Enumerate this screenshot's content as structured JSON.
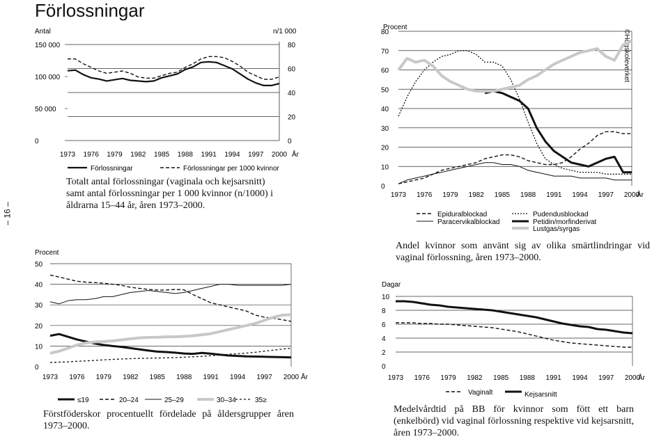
{
  "page_title": "Förlossningar",
  "page_number": "– 16 –",
  "credit": "©Högskoleverket",
  "chart_data": [
    {
      "id": "c1",
      "type": "line",
      "left_axis_label": "Antal",
      "right_axis_label": "n/1 000",
      "x_unit": "År",
      "x_ticks": [
        "1973",
        "1976",
        "1979",
        "1982",
        "1985",
        "1988",
        "1991",
        "1994",
        "1997",
        "2000"
      ],
      "left_ticks": [
        "0",
        "50 000",
        "100 000",
        "150 000"
      ],
      "right_ticks": [
        "0",
        "20",
        "40",
        "60",
        "80"
      ],
      "left_ylim": [
        0,
        150000
      ],
      "right_ylim": [
        0,
        80
      ],
      "x": [
        1973,
        1974,
        1975,
        1976,
        1977,
        1978,
        1979,
        1980,
        1981,
        1982,
        1983,
        1984,
        1985,
        1986,
        1987,
        1988,
        1989,
        1990,
        1991,
        1992,
        1993,
        1994,
        1995,
        1996,
        1997,
        1998,
        1999,
        2000
      ],
      "series": [
        {
          "name": "Förlossningar",
          "style": "solid",
          "axis": "left",
          "values": [
            109000,
            110000,
            103000,
            98000,
            96000,
            93000,
            95000,
            97000,
            94000,
            93000,
            92000,
            93000,
            98000,
            101000,
            104000,
            111000,
            115000,
            122000,
            123000,
            122000,
            117000,
            112000,
            104000,
            96000,
            90000,
            86000,
            86000,
            89000
          ]
        },
        {
          "name": "Förlossningar per 1000 kvinnor",
          "style": "dashed",
          "axis": "right",
          "values": [
            68,
            68,
            64,
            61,
            58,
            56,
            57,
            58,
            56,
            53,
            52,
            52,
            54,
            56,
            57,
            61,
            64,
            68,
            70,
            70,
            69,
            66,
            62,
            57,
            54,
            51,
            51,
            53
          ]
        }
      ],
      "caption": "Totalt antal förlossningar (vaginala och kejsarsnitt) samt antal förlossningar per 1 000 kvinnor (n/1000) i åldrarna 15–44 år, åren 1973–2000."
    },
    {
      "id": "c2",
      "type": "line",
      "y_axis_label": "Procent",
      "x_unit": "År",
      "x_ticks": [
        "1973",
        "1976",
        "1979",
        "1982",
        "1985",
        "1988",
        "1991",
        "1994",
        "1997",
        "2000"
      ],
      "y_ticks": [
        "0",
        "10",
        "20",
        "30",
        "40",
        "50",
        "60",
        "70",
        "80"
      ],
      "ylim": [
        0,
        80
      ],
      "x": [
        1973,
        1974,
        1975,
        1976,
        1977,
        1978,
        1979,
        1980,
        1981,
        1982,
        1983,
        1984,
        1985,
        1986,
        1987,
        1988,
        1989,
        1990,
        1991,
        1992,
        1993,
        1994,
        1995,
        1996,
        1997,
        1998,
        1999,
        2000
      ],
      "series": [
        {
          "name": "Epiduralblockad",
          "style": "dashed",
          "values": [
            1,
            2,
            3,
            4,
            6,
            8,
            9,
            10,
            11,
            12,
            14,
            15,
            16,
            16,
            15,
            13,
            12,
            11,
            11,
            12,
            15,
            19,
            22,
            26,
            28,
            28,
            27,
            27
          ]
        },
        {
          "name": "Paracervikalblockad",
          "style": "thin",
          "values": [
            1,
            3,
            4,
            5,
            6,
            7,
            8,
            9,
            10,
            11,
            12,
            12,
            11,
            11,
            10,
            8,
            7,
            6,
            5,
            5,
            5,
            4,
            4,
            4,
            4,
            3,
            3,
            3
          ]
        },
        {
          "name": "Pudendusblockad",
          "style": "dotted",
          "values": [
            36,
            46,
            54,
            60,
            64,
            67,
            68,
            70,
            70,
            68,
            64,
            64,
            62,
            55,
            45,
            33,
            22,
            14,
            11,
            9,
            8,
            7,
            7,
            7,
            6,
            6,
            6,
            6
          ]
        },
        {
          "name": "Petidin/morfinderivat",
          "style": "thick",
          "values": [
            null,
            null,
            null,
            null,
            null,
            null,
            null,
            null,
            null,
            null,
            48,
            49,
            48,
            46,
            44,
            40,
            30,
            23,
            18,
            15,
            12,
            11,
            10,
            12,
            14,
            15,
            7,
            7
          ]
        },
        {
          "name": "Lustgas/syrgas",
          "style": "grey",
          "values": [
            60,
            66,
            64,
            65,
            62,
            57,
            54,
            52,
            50,
            49,
            49,
            49,
            50,
            51,
            52,
            55,
            57,
            60,
            63,
            65,
            67,
            69,
            70,
            71,
            67,
            65,
            73,
            75
          ]
        }
      ],
      "caption": "Andel kvinnor som använt sig av olika smärtlindringar vid vaginal förlossning, åren 1973–2000."
    },
    {
      "id": "c3",
      "type": "line",
      "y_axis_label": "Procent",
      "x_unit": "År",
      "x_ticks": [
        "1973",
        "1976",
        "1979",
        "1982",
        "1985",
        "1988",
        "1991",
        "1994",
        "1997",
        "2000"
      ],
      "y_ticks": [
        "0",
        "10",
        "20",
        "30",
        "40",
        "50"
      ],
      "ylim": [
        0,
        50
      ],
      "x": [
        1973,
        1974,
        1975,
        1976,
        1977,
        1978,
        1979,
        1980,
        1981,
        1982,
        1983,
        1984,
        1985,
        1986,
        1987,
        1988,
        1989,
        1990,
        1991,
        1992,
        1993,
        1994,
        1995,
        1996,
        1997,
        1998,
        1999,
        2000
      ],
      "series": [
        {
          "name": "≤19",
          "style": "thick",
          "values": [
            15,
            15.8,
            14.5,
            13.2,
            12.2,
            11.2,
            10.5,
            10,
            9.6,
            9,
            8.4,
            7.8,
            7.3,
            7.1,
            6.8,
            6.4,
            6.2,
            6.7,
            6.3,
            5.8,
            5.4,
            5.2,
            5,
            4.9,
            4.8,
            4.7,
            4.6,
            4.5
          ]
        },
        {
          "name": "20–24",
          "style": "dashed",
          "values": [
            44.5,
            43.5,
            42.5,
            41.5,
            41,
            40.8,
            40.5,
            40,
            39.5,
            38.5,
            38,
            37.5,
            37.2,
            37.2,
            37.5,
            37.3,
            35,
            33,
            31,
            30,
            29,
            28,
            27,
            25,
            24,
            23.5,
            22.8,
            22
          ]
        },
        {
          "name": "25–29",
          "style": "thin",
          "values": [
            31.5,
            30.5,
            32,
            32.5,
            32.5,
            33,
            34,
            34,
            35,
            36,
            36.5,
            37,
            36.5,
            36,
            35.5,
            36,
            37,
            38,
            39,
            40,
            40,
            39.5,
            39.5,
            39.5,
            39.5,
            39.5,
            39.5,
            40
          ]
        },
        {
          "name": "30–34",
          "style": "grey",
          "values": [
            6.5,
            7.5,
            9,
            10.5,
            11.5,
            12,
            12.2,
            12.5,
            13,
            13.5,
            14,
            14.2,
            14.3,
            14.5,
            14.5,
            14.7,
            15,
            15.5,
            16,
            17,
            18,
            19,
            20,
            21,
            22.5,
            24,
            25,
            25.2
          ]
        },
        {
          "name": "35≥",
          "style": "dashed-small",
          "values": [
            2,
            2.2,
            2.3,
            2.6,
            2.8,
            3,
            3.3,
            3.5,
            3.7,
            3.9,
            4,
            4.1,
            4.2,
            4.3,
            4.4,
            4.6,
            4.8,
            5,
            5.3,
            5.6,
            6,
            6.3,
            6.6,
            7,
            7.5,
            8,
            8.5,
            9
          ]
        }
      ],
      "legend_labels": [
        "≤19",
        "20–24",
        "25–29",
        "30–34",
        "35≥"
      ],
      "caption": "Förstföderskor procentuellt fördelade på åldersgrupper åren 1973–2000."
    },
    {
      "id": "c4",
      "type": "line",
      "y_axis_label": "Dagar",
      "x_unit": "År",
      "x_ticks": [
        "1973",
        "1976",
        "1979",
        "1982",
        "1985",
        "1988",
        "1991",
        "1994",
        "1997",
        "2000"
      ],
      "y_ticks": [
        "0",
        "2",
        "4",
        "6",
        "8",
        "10"
      ],
      "ylim": [
        0,
        10
      ],
      "x": [
        1973,
        1974,
        1975,
        1976,
        1977,
        1978,
        1979,
        1980,
        1981,
        1982,
        1983,
        1984,
        1985,
        1986,
        1987,
        1988,
        1989,
        1990,
        1991,
        1992,
        1993,
        1994,
        1995,
        1996,
        1997,
        1998,
        1999,
        2000
      ],
      "series": [
        {
          "name": "Vaginalt",
          "style": "dashed",
          "values": [
            6.2,
            6.2,
            6.2,
            6.1,
            6.1,
            6,
            6,
            5.9,
            5.8,
            5.7,
            5.6,
            5.5,
            5.3,
            5.1,
            4.9,
            4.6,
            4.3,
            4,
            3.7,
            3.5,
            3.3,
            3.2,
            3.1,
            3,
            2.9,
            2.8,
            2.7,
            2.7
          ]
        },
        {
          "name": "Kejsarsnitt",
          "style": "thick",
          "values": [
            9.3,
            9.3,
            9.2,
            9,
            8.8,
            8.7,
            8.5,
            8.4,
            8.3,
            8.2,
            8.1,
            8,
            7.8,
            7.6,
            7.4,
            7.2,
            7,
            6.7,
            6.4,
            6.1,
            5.9,
            5.7,
            5.6,
            5.3,
            5.2,
            5,
            4.8,
            4.7
          ]
        }
      ],
      "caption": "Medelvårdtid på BB för kvinnor som fött ett barn (enkelbörd) vid vaginal förlossning respektive vid kejsarsnitt, åren 1973–2000."
    }
  ]
}
